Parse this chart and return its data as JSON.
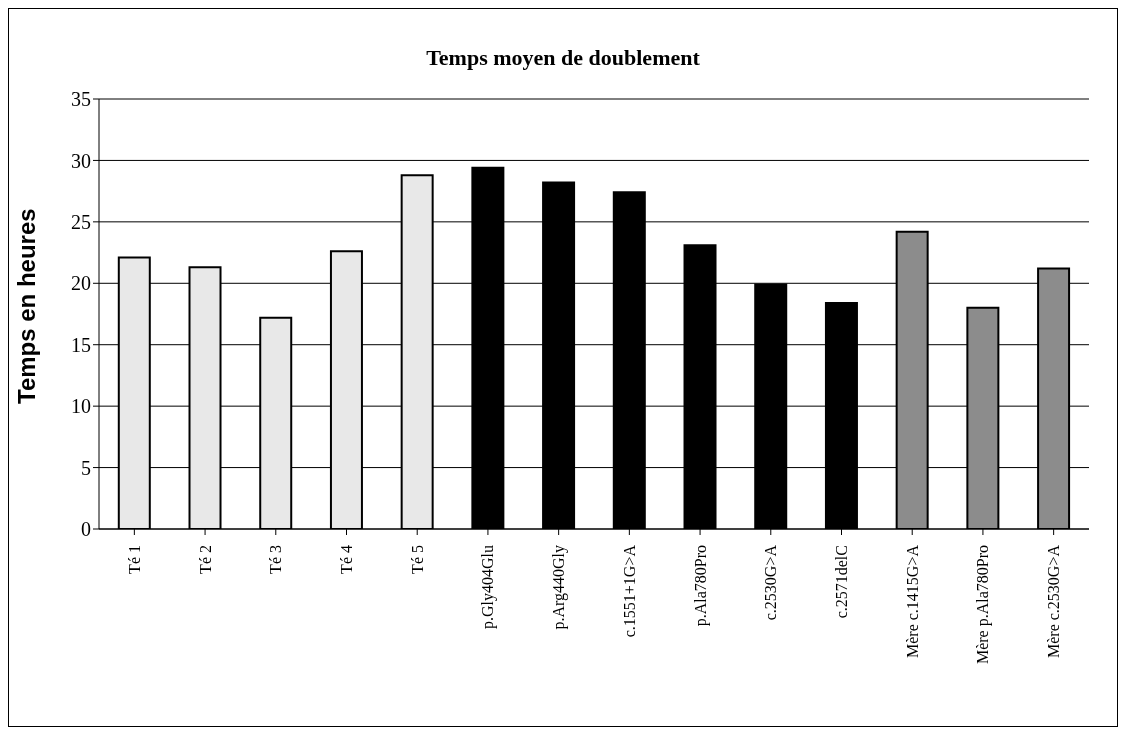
{
  "chart_data": {
    "type": "bar",
    "title": "Temps moyen de doublement",
    "ylabel": "Temps en heures",
    "categories": [
      "Té 1",
      "Té 2",
      "Té 3",
      "Té 4",
      "Té 5",
      "p.Gly404Glu",
      "p.Arg440Gly",
      "c.1551+1G>A",
      "p.Ala780Pro",
      "c.2530G>A",
      "c.2571delC",
      "Mère c.1415G>A",
      "Mère p.Ala780Pro",
      "Mère c.2530G>A"
    ],
    "values": [
      22.1,
      21.3,
      17.2,
      22.6,
      28.8,
      29.4,
      28.2,
      27.4,
      23.1,
      19.9,
      18.4,
      24.2,
      18.0,
      21.2
    ],
    "colors": [
      "#e8e8e8",
      "#e8e8e8",
      "#e8e8e8",
      "#e8e8e8",
      "#e8e8e8",
      "#000000",
      "#000000",
      "#000000",
      "#000000",
      "#000000",
      "#000000",
      "#8c8c8c",
      "#8c8c8c",
      "#8c8c8c"
    ],
    "ylim": [
      0,
      35
    ],
    "yticks": [
      0,
      5,
      10,
      15,
      20,
      25,
      30,
      35
    ],
    "grid": "y"
  }
}
